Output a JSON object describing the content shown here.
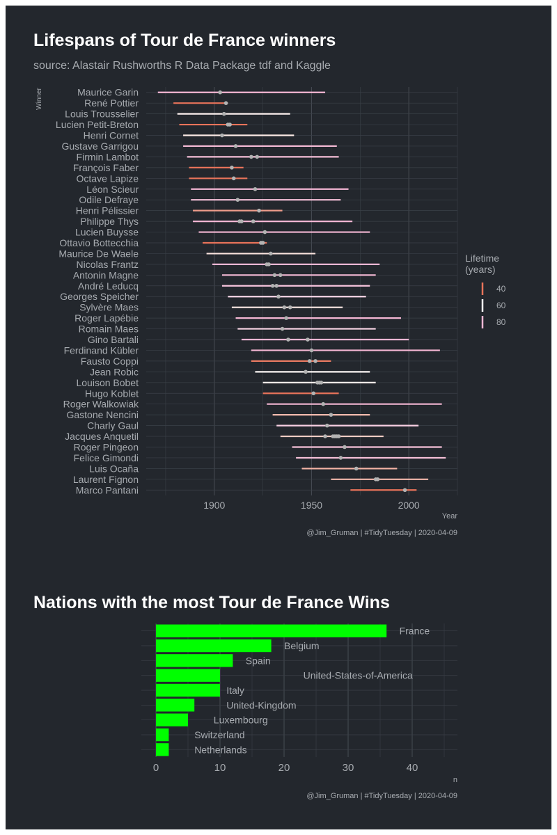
{
  "chart_data": [
    {
      "type": "lifespan_range",
      "title": "Lifespans of Tour de France winners",
      "subtitle": "source: Alastair Rushworths R Data Package tdf and Kaggle",
      "caption": "@Jim_Gruman | #TidyTuesday | 2020-04-09",
      "xlabel": "Year",
      "ylabel": "Winner",
      "xlim": [
        1865,
        2025
      ],
      "xticks": [
        1900,
        1950,
        2000
      ],
      "legend": {
        "title_lines": [
          "Lifetime",
          "(years)"
        ],
        "position": "right",
        "entries": [
          {
            "label": "40",
            "color": "#e8735a"
          },
          {
            "label": "60",
            "color": "#ffffff"
          },
          {
            "label": "80",
            "color": "#f5b7d4"
          }
        ]
      },
      "winners": [
        {
          "name": "Maurice Garin",
          "born": 1871,
          "died": 1957,
          "wins": [
            1903
          ]
        },
        {
          "name": "René Pottier",
          "born": 1879,
          "died": 1907,
          "wins": [
            1906
          ]
        },
        {
          "name": "Louis Trousselier",
          "born": 1881,
          "died": 1939,
          "wins": [
            1905
          ]
        },
        {
          "name": "Lucien Petit-Breton",
          "born": 1882,
          "died": 1917,
          "wins": [
            1907,
            1908
          ]
        },
        {
          "name": "Henri Cornet",
          "born": 1884,
          "died": 1941,
          "wins": [
            1904
          ]
        },
        {
          "name": "Gustave Garrigou",
          "born": 1884,
          "died": 1963,
          "wins": [
            1911
          ]
        },
        {
          "name": "Firmin Lambot",
          "born": 1886,
          "died": 1964,
          "wins": [
            1919,
            1922
          ]
        },
        {
          "name": "François Faber",
          "born": 1887,
          "died": 1915,
          "wins": [
            1909
          ]
        },
        {
          "name": "Octave Lapize",
          "born": 1887,
          "died": 1917,
          "wins": [
            1910
          ]
        },
        {
          "name": "Léon Scieur",
          "born": 1888,
          "died": 1969,
          "wins": [
            1921
          ]
        },
        {
          "name": "Odile Defraye",
          "born": 1888,
          "died": 1965,
          "wins": [
            1912
          ]
        },
        {
          "name": "Henri Pélissier",
          "born": 1889,
          "died": 1935,
          "wins": [
            1923
          ]
        },
        {
          "name": "Philippe Thys",
          "born": 1889,
          "died": 1971,
          "wins": [
            1913,
            1914,
            1920
          ]
        },
        {
          "name": "Lucien Buysse",
          "born": 1892,
          "died": 1980,
          "wins": [
            1926
          ]
        },
        {
          "name": "Ottavio Bottecchia",
          "born": 1894,
          "died": 1927,
          "wins": [
            1924,
            1925
          ]
        },
        {
          "name": "Maurice De Waele",
          "born": 1896,
          "died": 1952,
          "wins": [
            1929
          ]
        },
        {
          "name": "Nicolas Frantz",
          "born": 1899,
          "died": 1985,
          "wins": [
            1927,
            1928
          ]
        },
        {
          "name": "Antonin Magne",
          "born": 1904,
          "died": 1983,
          "wins": [
            1931,
            1934
          ]
        },
        {
          "name": "André Leducq",
          "born": 1904,
          "died": 1980,
          "wins": [
            1930,
            1932
          ]
        },
        {
          "name": "Georges Speicher",
          "born": 1907,
          "died": 1978,
          "wins": [
            1933
          ]
        },
        {
          "name": "Sylvère Maes",
          "born": 1909,
          "died": 1966,
          "wins": [
            1936,
            1939
          ]
        },
        {
          "name": "Roger Lapébie",
          "born": 1911,
          "died": 1996,
          "wins": [
            1937
          ]
        },
        {
          "name": "Romain Maes",
          "born": 1912,
          "died": 1983,
          "wins": [
            1935
          ]
        },
        {
          "name": "Gino Bartali",
          "born": 1914,
          "died": 2000,
          "wins": [
            1938,
            1948
          ]
        },
        {
          "name": "Ferdinand Kübler",
          "born": 1919,
          "died": 2016,
          "wins": [
            1950
          ]
        },
        {
          "name": "Fausto Coppi",
          "born": 1919,
          "died": 1960,
          "wins": [
            1949,
            1952
          ]
        },
        {
          "name": "Jean Robic",
          "born": 1921,
          "died": 1980,
          "wins": [
            1947
          ]
        },
        {
          "name": "Louison Bobet",
          "born": 1925,
          "died": 1983,
          "wins": [
            1953,
            1954,
            1955
          ]
        },
        {
          "name": "Hugo Koblet",
          "born": 1925,
          "died": 1964,
          "wins": [
            1951
          ]
        },
        {
          "name": "Roger Walkowiak",
          "born": 1927,
          "died": 2017,
          "wins": [
            1956
          ]
        },
        {
          "name": "Gastone Nencini",
          "born": 1930,
          "died": 1980,
          "wins": [
            1960
          ]
        },
        {
          "name": "Charly Gaul",
          "born": 1932,
          "died": 2005,
          "wins": [
            1958
          ]
        },
        {
          "name": "Jacques Anquetil",
          "born": 1934,
          "died": 1987,
          "wins": [
            1957,
            1961,
            1962,
            1963,
            1964
          ]
        },
        {
          "name": "Roger Pingeon",
          "born": 1940,
          "died": 2017,
          "wins": [
            1967
          ]
        },
        {
          "name": "Felice Gimondi",
          "born": 1942,
          "died": 2019,
          "wins": [
            1965
          ]
        },
        {
          "name": "Luis Ocaña",
          "born": 1945,
          "died": 1994,
          "wins": [
            1973
          ]
        },
        {
          "name": "Laurent Fignon",
          "born": 1960,
          "died": 2010,
          "wins": [
            1983,
            1984
          ]
        },
        {
          "name": "Marco Pantani",
          "born": 1970,
          "died": 2004,
          "wins": [
            1998
          ]
        }
      ]
    },
    {
      "type": "bar",
      "orientation": "horizontal",
      "title": "Nations with the most Tour de France Wins",
      "caption": "@Jim_Gruman | #TidyTuesday | 2020-04-09",
      "xlabel": "n",
      "xlim": [
        0,
        46
      ],
      "xticks": [
        0,
        10,
        20,
        30,
        40
      ],
      "bar_color": "#00ff00",
      "categories": [
        "France",
        "Belgium",
        "Spain",
        "United-States-of-America",
        "Italy",
        "United-Kingdom",
        "Luxembourg",
        "Switzerland",
        "Netherlands"
      ],
      "values": [
        36,
        18,
        12,
        10,
        10,
        6,
        5,
        2,
        2
      ],
      "label_x": [
        38,
        20,
        14,
        23,
        11,
        11,
        9,
        6,
        6
      ]
    }
  ]
}
